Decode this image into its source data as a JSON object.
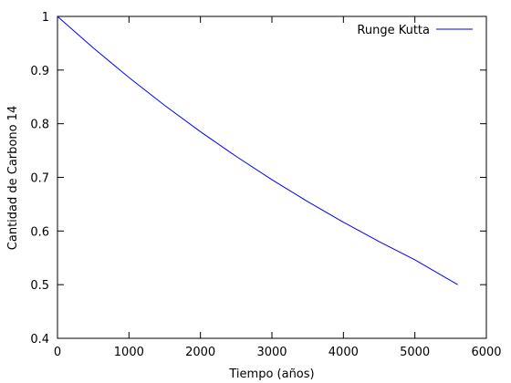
{
  "chart_data": {
    "type": "line",
    "title": "",
    "xlabel": "Tiempo (años)",
    "ylabel": "Cantidad de Carbono 14",
    "xlim": [
      0,
      6000
    ],
    "ylim": [
      0.4,
      1
    ],
    "xticks": [
      0,
      1000,
      2000,
      3000,
      4000,
      5000,
      6000
    ],
    "yticks": [
      0.4,
      0.5,
      0.6,
      0.7,
      0.8,
      0.9,
      1
    ],
    "xtick_labels": [
      "0",
      "1000",
      "2000",
      "3000",
      "4000",
      "5000",
      "6000"
    ],
    "ytick_labels": [
      "0.4",
      "0.5",
      "0.6",
      "0.7",
      "0.8",
      "0.9",
      "1"
    ],
    "grid": false,
    "legend_position": "top-right",
    "series": [
      {
        "name": "Runge Kutta",
        "color": "#0000ff",
        "x": [
          0,
          500,
          1000,
          1500,
          2000,
          2500,
          3000,
          3500,
          4000,
          4500,
          5000,
          5600
        ],
        "y": [
          1.0,
          0.9413,
          0.8861,
          0.8341,
          0.7851,
          0.7391,
          0.6957,
          0.6549,
          0.6165,
          0.5803,
          0.5463,
          0.5
        ]
      }
    ]
  }
}
